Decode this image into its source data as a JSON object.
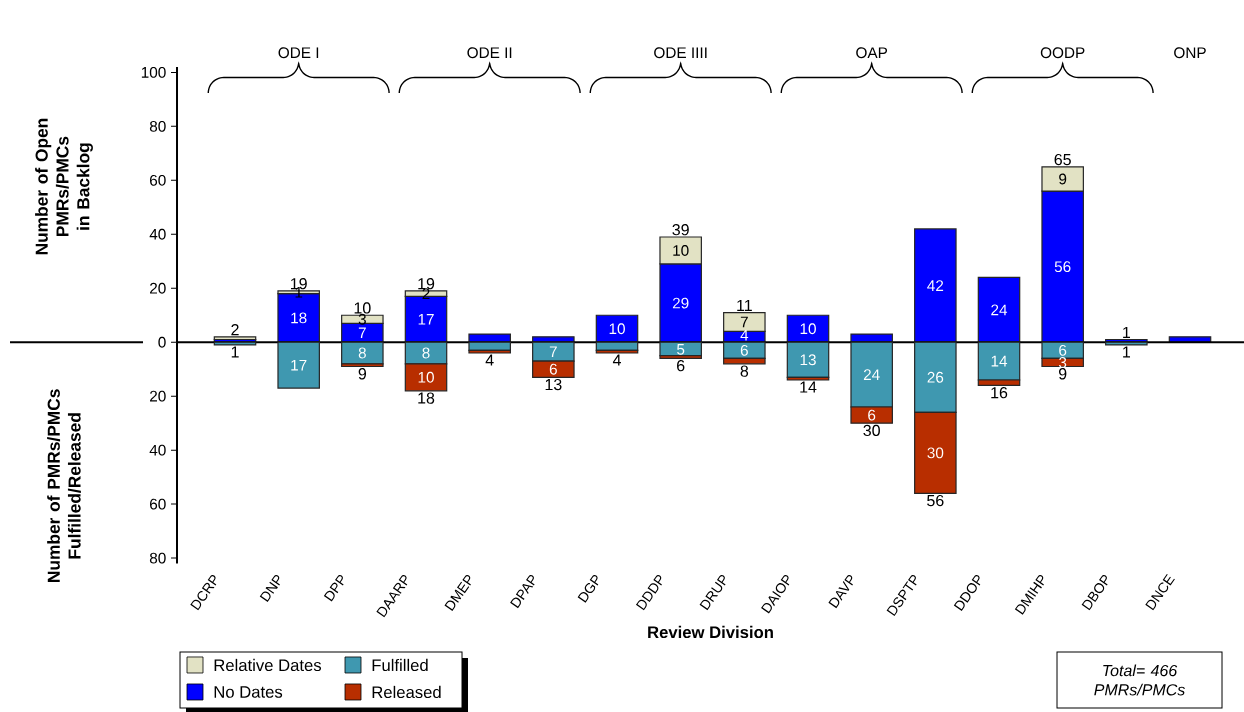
{
  "chart_data": [
    {
      "type": "bar",
      "stacked": true,
      "tick_labels": "y",
      "categories": [
        "DCRP",
        "DNP",
        "DPP",
        "DAARP",
        "DMEP",
        "DPAP",
        "DGP",
        "DDDP",
        "DRUP",
        "DAIOP",
        "DAVP",
        "DSPTP",
        "DDOP",
        "DMIHP",
        "DBOP",
        "DNCE"
      ],
      "series": [
        {
          "name": "No Dates",
          "color": "#0000ff",
          "values": [
            1,
            18,
            7,
            17,
            3,
            2,
            10,
            29,
            4,
            10,
            3,
            42,
            24,
            56,
            1,
            2
          ],
          "value_labels": [
            null,
            "18",
            "7",
            "17",
            null,
            null,
            "10",
            "29",
            "4",
            "10",
            null,
            "42",
            "24",
            "56",
            null,
            null
          ]
        },
        {
          "name": "Relative Dates",
          "color": "#e2e2c4",
          "values": [
            1,
            1,
            3,
            2,
            null,
            null,
            null,
            10,
            7,
            null,
            null,
            null,
            null,
            9,
            null,
            null
          ],
          "value_labels": [
            null,
            "1",
            "3",
            "2",
            null,
            null,
            null,
            "10",
            "7",
            null,
            null,
            null,
            null,
            "9",
            null,
            null
          ]
        }
      ],
      "ylim": [
        0,
        102
      ],
      "yticks": [
        0,
        20,
        40,
        60,
        80,
        100
      ],
      "ylabel": "Number of Open PMRs/PMCs in Backlog",
      "legend": "bottom left",
      "annotations": [
        "ODE I",
        "ODE II",
        "ODE IIII",
        "OAP",
        "OODP",
        "ONP",
        {
          "text": "2",
          "x": "DCRP",
          "y": 2
        },
        {
          "text": "19",
          "x": "DNP",
          "y": 19
        },
        {
          "text": "10",
          "x": "DPP",
          "y": 10
        },
        {
          "text": "19",
          "x": "DAARP",
          "y": 19
        },
        {
          "text": "39",
          "x": "DDDP",
          "y": 39
        },
        {
          "text": "11",
          "x": "DRUP",
          "y": 11
        },
        {
          "text": "65",
          "x": "DMIHP",
          "y": 65
        },
        {
          "text": "1",
          "x": "DBOP",
          "y": 1
        }
      ]
    },
    {
      "type": "bar",
      "stacked": true,
      "categories": [
        "DCRP",
        "DNP",
        "DPP",
        "DAARP",
        "DMEP",
        "DPAP",
        "DGP",
        "DDDP",
        "DRUP",
        "DAIOP",
        "DAVP",
        "DSPTP",
        "DDOP",
        "DMIHP",
        "DBOP",
        "DNCE"
      ],
      "series": [
        {
          "name": "Fulfilled",
          "color": "#3f98b0",
          "values": [
            1,
            17,
            8,
            8,
            3,
            7,
            3,
            5,
            6,
            13,
            24,
            26,
            14,
            6,
            1,
            null
          ],
          "value_labels": [
            null,
            "17",
            "8",
            "8",
            null,
            "7",
            null,
            "5",
            "6",
            "13",
            "24",
            "26",
            "14",
            "6",
            null,
            null
          ]
        },
        {
          "name": "Released",
          "color": "#b82e00",
          "values": [
            null,
            null,
            1,
            10,
            1,
            6,
            1,
            1,
            2,
            1,
            6,
            30,
            2,
            3,
            null,
            null
          ],
          "value_labels": [
            null,
            null,
            null,
            "10",
            null,
            "6",
            null,
            null,
            null,
            null,
            "6",
            "30",
            null,
            "3",
            null,
            null
          ]
        }
      ],
      "ylim": [
        82,
        0
      ],
      "yticks": [
        20,
        40,
        60,
        80
      ],
      "xlabel": "Review Division",
      "ylabel": "Number of PMRs/PMCs Fulfilled/Released",
      "legend": "bottom left",
      "annotations": [
        {
          "text": "1",
          "x": "DCRP",
          "y": 1
        },
        {
          "text": "9",
          "x": "DPP",
          "y": 9
        },
        {
          "text": "18",
          "x": "DAARP",
          "y": 18
        },
        {
          "text": "4",
          "x": "DMEP",
          "y": 4
        },
        {
          "text": "13",
          "x": "DPAP",
          "y": 13
        },
        {
          "text": "4",
          "x": "DGP",
          "y": 4
        },
        {
          "text": "6",
          "x": "DDDP",
          "y": 6
        },
        {
          "text": "8",
          "x": "DRUP",
          "y": 8
        },
        {
          "text": "14",
          "x": "DAIOP",
          "y": 14
        },
        {
          "text": "30",
          "x": "DAVP",
          "y": 30
        },
        {
          "text": "56",
          "x": "DSPTP",
          "y": 56
        },
        {
          "text": "16",
          "x": "DDOP",
          "y": 16
        },
        {
          "text": "9",
          "x": "DMIHP",
          "y": 9
        },
        {
          "text": "1",
          "x": "DBOP",
          "y": 1
        },
        "Total= 466 PMRs/PMCs"
      ]
    }
  ]
}
